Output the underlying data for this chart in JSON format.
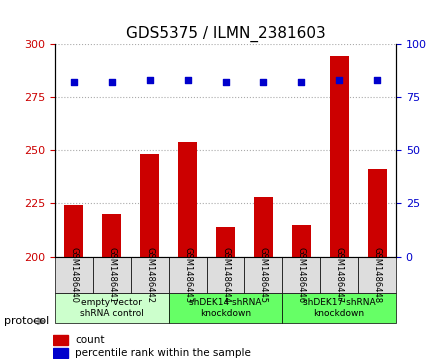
{
  "title": "GDS5375 / ILMN_2381603",
  "samples": [
    "GSM1486440",
    "GSM1486441",
    "GSM1486442",
    "GSM1486443",
    "GSM1486444",
    "GSM1486445",
    "GSM1486446",
    "GSM1486447",
    "GSM1486448"
  ],
  "counts": [
    224,
    220,
    248,
    254,
    214,
    228,
    215,
    294,
    241
  ],
  "percentiles": [
    82,
    82,
    83,
    83,
    82,
    82,
    82,
    83,
    83
  ],
  "ylim_left": [
    200,
    300
  ],
  "ylim_right": [
    0,
    100
  ],
  "yticks_left": [
    200,
    225,
    250,
    275,
    300
  ],
  "yticks_right": [
    0,
    25,
    50,
    75,
    100
  ],
  "bar_color": "#cc0000",
  "dot_color": "#0000cc",
  "groups": [
    {
      "label": "empty vector\nshRNA control",
      "start": 0,
      "end": 3,
      "color": "#ccffcc"
    },
    {
      "label": "shDEK14 shRNA\nknockdown",
      "start": 3,
      "end": 6,
      "color": "#66ff66"
    },
    {
      "label": "shDEK17 shRNA\nknockdown",
      "start": 6,
      "end": 9,
      "color": "#66ff66"
    }
  ],
  "protocol_label": "protocol",
  "legend_count_label": "count",
  "legend_pct_label": "percentile rank within the sample",
  "grid_color": "#aaaaaa",
  "tick_label_color_left": "#cc0000",
  "tick_label_color_right": "#0000cc",
  "title_fontsize": 11,
  "axis_fontsize": 7,
  "bar_width": 0.5
}
